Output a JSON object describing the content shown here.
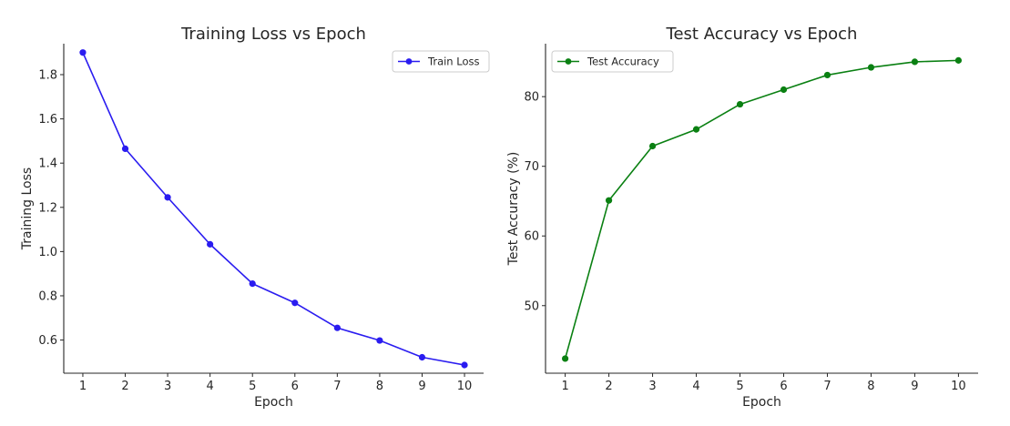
{
  "chart_data": [
    {
      "type": "line",
      "title": "Training Loss vs Epoch",
      "xlabel": "Epoch",
      "ylabel": "Training Loss",
      "x": [
        1,
        2,
        3,
        4,
        5,
        6,
        7,
        8,
        9,
        10
      ],
      "xticks": [
        "1",
        "2",
        "3",
        "4",
        "5",
        "6",
        "7",
        "8",
        "9",
        "10"
      ],
      "yticks": [
        "0.6",
        "0.8",
        "1.0",
        "1.2",
        "1.4",
        "1.6",
        "1.8"
      ],
      "ylim": [
        0.45,
        1.94
      ],
      "xlim": [
        0.55,
        10.45
      ],
      "grid": false,
      "legend_position": "top-right",
      "series": [
        {
          "name": "Train Loss",
          "color": "#2a1cf0",
          "marker": "circle",
          "values": [
            1.9,
            1.465,
            1.245,
            1.033,
            0.855,
            0.768,
            0.655,
            0.598,
            0.522,
            0.487
          ]
        }
      ]
    },
    {
      "type": "line",
      "title": "Test Accuracy vs Epoch",
      "xlabel": "Epoch",
      "ylabel": "Test Accuracy (%)",
      "x": [
        1,
        2,
        3,
        4,
        5,
        6,
        7,
        8,
        9,
        10
      ],
      "xticks": [
        "1",
        "2",
        "3",
        "4",
        "5",
        "6",
        "7",
        "8",
        "9",
        "10"
      ],
      "yticks": [
        "50",
        "60",
        "70",
        "80"
      ],
      "ylim": [
        40.3,
        87.6
      ],
      "xlim": [
        0.55,
        10.45
      ],
      "grid": false,
      "legend_position": "top-left",
      "series": [
        {
          "name": "Test Accuracy",
          "color": "#0a8012",
          "marker": "circle",
          "values": [
            42.4,
            65.1,
            72.9,
            75.3,
            78.9,
            81.0,
            83.1,
            84.2,
            85.0,
            85.2
          ]
        }
      ]
    }
  ]
}
